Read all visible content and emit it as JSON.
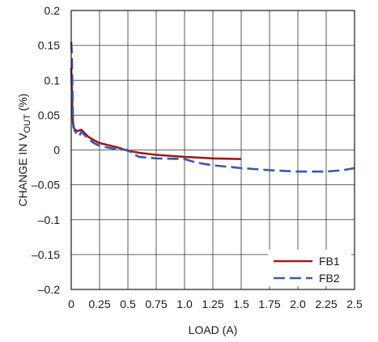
{
  "chart_data": {
    "type": "line",
    "xlabel": "LOAD (A)",
    "ylabel_main": "CHANGE IN V",
    "ylabel_sub": "OUT",
    "ylabel_unit": " (%)",
    "xlim": [
      0,
      2.5
    ],
    "ylim": [
      -0.2,
      0.2
    ],
    "grid": true,
    "x_ticks": [
      0,
      0.25,
      0.5,
      0.75,
      1.0,
      1.25,
      1.5,
      1.75,
      2.0,
      2.25,
      2.5
    ],
    "x_tick_labels": [
      "0",
      "0.25",
      "0.5",
      "0.75",
      "1.0",
      "1.25",
      "1.5",
      "1.75",
      "2.0",
      "2.25",
      "2.5"
    ],
    "y_ticks": [
      -0.2,
      -0.15,
      -0.1,
      -0.05,
      0,
      0.05,
      0.1,
      0.15,
      0.2
    ],
    "y_tick_labels": [
      "–0.2",
      "–0.15",
      "–0.1",
      "–0.05",
      "0",
      "0.05",
      "0.1",
      "0.15",
      "0.2"
    ],
    "legend_position": "bottom-right",
    "series": [
      {
        "name": "FB1",
        "color": "#9b1c1c",
        "dash": "solid",
        "x": [
          0.0,
          0.005,
          0.01,
          0.015,
          0.02,
          0.03,
          0.05,
          0.07,
          0.09,
          0.12,
          0.15,
          0.2,
          0.25,
          0.3,
          0.4,
          0.5,
          0.6,
          0.75,
          1.0,
          1.25,
          1.5
        ],
        "y": [
          0.118,
          0.09,
          0.06,
          0.04,
          0.032,
          0.03,
          0.027,
          0.028,
          0.029,
          0.024,
          0.019,
          0.014,
          0.01,
          0.008,
          0.004,
          -0.001,
          -0.004,
          -0.007,
          -0.01,
          -0.012,
          -0.013
        ]
      },
      {
        "name": "FB2",
        "color": "#3a5aa8",
        "dash": "dashed",
        "x": [
          0.0,
          0.005,
          0.01,
          0.015,
          0.02,
          0.03,
          0.05,
          0.07,
          0.09,
          0.12,
          0.15,
          0.2,
          0.25,
          0.3,
          0.4,
          0.5,
          0.55,
          0.6,
          0.75,
          1.0,
          1.1,
          1.25,
          1.5,
          1.75,
          2.0,
          2.25,
          2.4,
          2.5
        ],
        "y": [
          0.155,
          0.14,
          0.1,
          0.05,
          0.035,
          0.028,
          0.022,
          0.02,
          0.026,
          0.021,
          0.016,
          0.01,
          0.006,
          0.004,
          0.001,
          0.0,
          -0.006,
          -0.01,
          -0.012,
          -0.013,
          -0.018,
          -0.022,
          -0.026,
          -0.029,
          -0.031,
          -0.031,
          -0.029,
          -0.026
        ]
      }
    ]
  }
}
